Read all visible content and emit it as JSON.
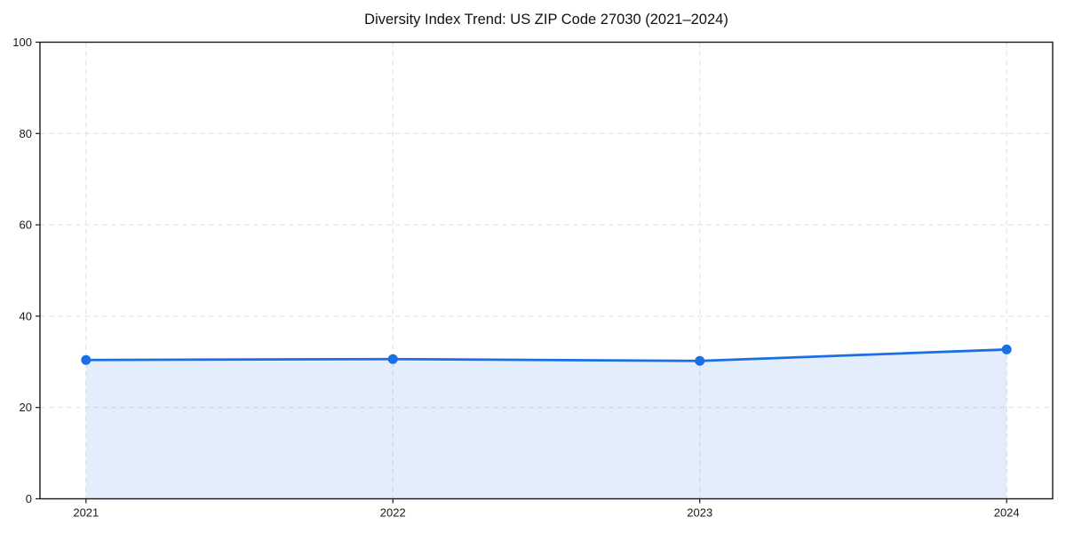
{
  "chart_data": {
    "type": "line",
    "title": "Diversity Index Trend: US ZIP Code 27030 (2021–2024)",
    "x": [
      2021,
      2022,
      2023,
      2024
    ],
    "xticks": [
      "2021",
      "2022",
      "2023",
      "2024"
    ],
    "yticks": [
      0,
      20,
      40,
      60,
      80,
      100
    ],
    "series": [
      {
        "name": "Diversity Index",
        "values": [
          30.4,
          30.6,
          30.2,
          32.7
        ]
      }
    ],
    "xlabel": "",
    "ylabel": "",
    "xlim": [
      2020.85,
      2024.15
    ],
    "ylim": [
      0,
      100
    ],
    "grid": true,
    "grid_style": "dashed",
    "legend": false,
    "area_fill": true,
    "colors": {
      "line": "#1a6fe3",
      "marker": "#1a6fe3",
      "fill": "#1a6fe3",
      "fill_opacity": 0.12,
      "grid": "#e0e0e0",
      "spine": "#1a1a1a",
      "tick_text": "#1a1a1a",
      "title_text": "#111111",
      "background": "#ffffff"
    }
  }
}
